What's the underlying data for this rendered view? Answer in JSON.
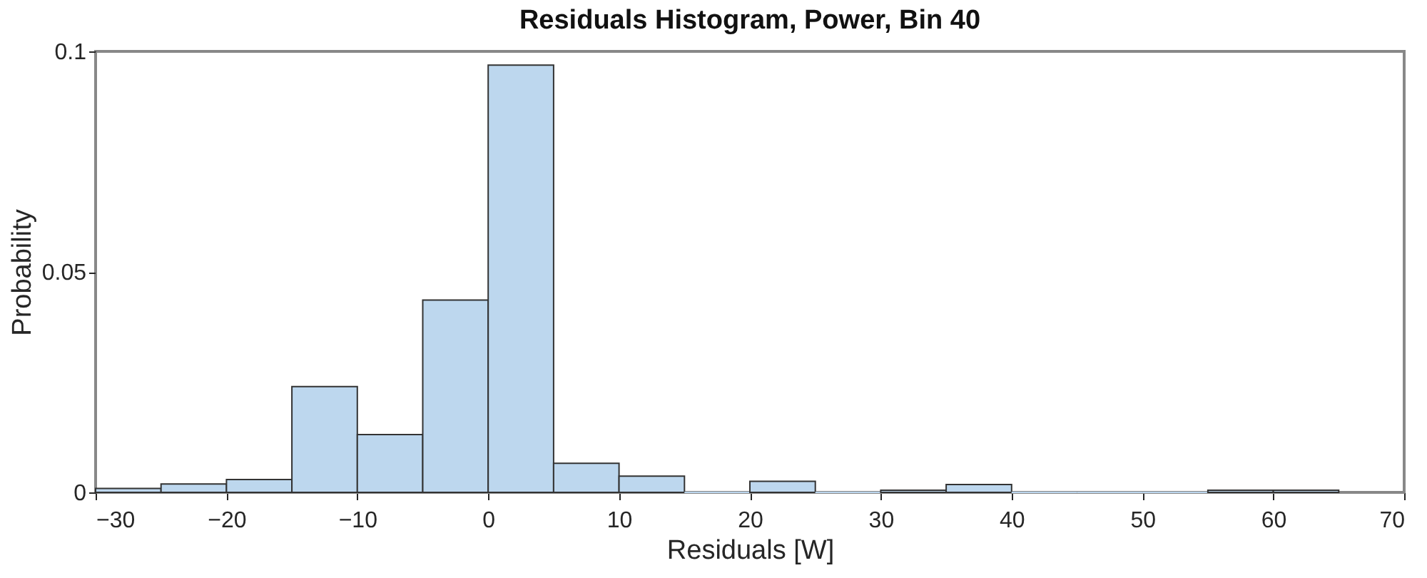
{
  "chart_data": {
    "type": "histogram",
    "title": "Residuals Histogram, Power, Bin 40",
    "xlabel": "Residuals [W]",
    "ylabel": "Probability",
    "bins": [
      -30,
      -25,
      -20,
      -15,
      -10,
      -5,
      0,
      5,
      10,
      15,
      20,
      25,
      30,
      35,
      40,
      45,
      50,
      55,
      60,
      65
    ],
    "values": [
      0.0009,
      0.0019,
      0.0029,
      0.024,
      0.0131,
      0.0436,
      0.0969,
      0.0066,
      0.0037,
      0,
      0.0025,
      0,
      0.0005,
      0.0018,
      0,
      0,
      0,
      0.0005,
      0.0005
    ],
    "color": "#bdd7ee",
    "xlim": [
      -30,
      70
    ],
    "xticks": [
      -30,
      -20,
      -10,
      0,
      10,
      20,
      30,
      40,
      50,
      60,
      70
    ],
    "ylim": [
      0,
      0.1
    ],
    "yticks": [
      0,
      0.05,
      0.1
    ],
    "grid": false
  }
}
